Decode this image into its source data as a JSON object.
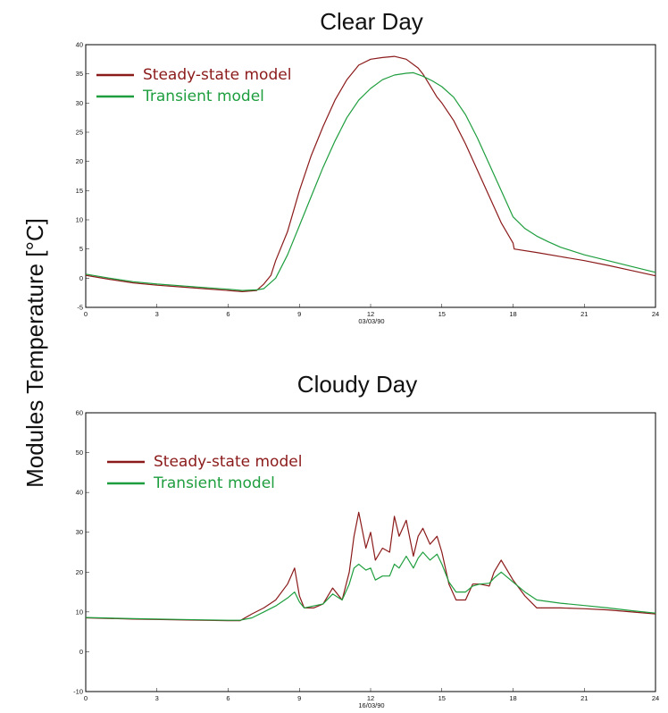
{
  "figure": {
    "ylabel": "Modules Temperature [°C]"
  },
  "colors": {
    "steady": "#8b1a1a",
    "transient": "#1e9e3e"
  },
  "chart_data": [
    {
      "type": "line",
      "title": "Clear Day",
      "xlabel": "03/03/90",
      "ylabel": "",
      "xlim": [
        0,
        24
      ],
      "ylim": [
        -5,
        40
      ],
      "xticks": [
        0,
        3,
        6,
        9,
        12,
        15,
        18,
        21,
        24
      ],
      "yticks": [
        -5,
        0,
        5,
        10,
        15,
        20,
        25,
        30,
        35,
        40
      ],
      "grid": false,
      "legend": "top-left",
      "series": [
        {
          "name": "Steady-state model",
          "color": "#8b1a1a",
          "x": [
            0,
            1,
            2,
            3,
            4,
            5,
            6,
            6.6,
            7.2,
            7.5,
            7.8,
            8,
            8.5,
            9,
            9.5,
            10,
            10.5,
            11,
            11.5,
            12,
            12.5,
            13,
            13.5,
            14,
            14.2,
            14.5,
            14.8,
            15,
            15.5,
            16,
            16.5,
            17,
            17.5,
            18,
            18.05,
            19,
            20,
            21,
            22,
            23,
            24
          ],
          "y": [
            0.5,
            -0.2,
            -0.8,
            -1.2,
            -1.5,
            -1.8,
            -2.1,
            -2.3,
            -2.1,
            -1,
            0.5,
            3,
            8,
            15,
            21,
            26,
            30.5,
            34,
            36.5,
            37.5,
            37.8,
            38,
            37.5,
            36,
            35,
            33,
            31,
            30,
            27,
            23,
            18.5,
            14,
            9.5,
            6,
            5,
            4.4,
            3.7,
            3,
            2.2,
            1.3,
            0.4
          ]
        },
        {
          "name": "Transient model",
          "color": "#1e9e3e",
          "x": [
            0,
            1,
            2,
            3,
            4,
            5,
            6,
            6.6,
            7.2,
            7.5,
            8,
            8.5,
            9,
            9.5,
            10,
            10.5,
            11,
            11.5,
            12,
            12.5,
            13,
            13.5,
            13.8,
            14.2,
            14.6,
            15,
            15.5,
            16,
            16.5,
            17,
            17.5,
            18,
            18.5,
            19,
            19.5,
            20,
            21,
            22,
            23,
            24
          ],
          "y": [
            0.7,
            0,
            -0.6,
            -1,
            -1.3,
            -1.6,
            -1.9,
            -2.1,
            -2,
            -1.8,
            0,
            4,
            9,
            14,
            19,
            23.5,
            27.5,
            30.5,
            32.5,
            34,
            34.8,
            35.1,
            35.2,
            34.6,
            33.8,
            32.8,
            31,
            28,
            24,
            19.5,
            15,
            10.5,
            8.5,
            7.2,
            6.2,
            5.3,
            4,
            3,
            2,
            1
          ]
        }
      ]
    },
    {
      "type": "line",
      "title": "Cloudy Day",
      "xlabel": "16/03/90",
      "ylabel": "",
      "xlim": [
        0,
        24
      ],
      "ylim": [
        -10,
        60
      ],
      "xticks": [
        0,
        3,
        6,
        9,
        12,
        15,
        18,
        21,
        24
      ],
      "yticks": [
        -10,
        0,
        10,
        20,
        30,
        40,
        50,
        60
      ],
      "grid": false,
      "legend": "top-left",
      "series": [
        {
          "name": "Steady-state model",
          "color": "#8b1a1a",
          "x": [
            0,
            2,
            4,
            6,
            6.5,
            7,
            7.5,
            8,
            8.5,
            8.8,
            9,
            9.2,
            9.6,
            10,
            10.4,
            10.8,
            11.1,
            11.3,
            11.5,
            11.8,
            12,
            12.2,
            12.5,
            12.8,
            13,
            13.2,
            13.5,
            13.8,
            14,
            14.2,
            14.5,
            14.8,
            15,
            15.3,
            15.6,
            16,
            16.3,
            16.6,
            17,
            17.2,
            17.5,
            18,
            18.5,
            19,
            20,
            21,
            22,
            23,
            24
          ],
          "y": [
            8.5,
            8.2,
            8,
            7.8,
            7.8,
            9.5,
            11,
            13,
            17,
            21,
            14,
            11,
            11,
            12,
            16,
            13,
            20,
            29,
            35,
            26,
            30,
            23,
            26,
            25,
            34,
            29,
            33,
            24,
            29,
            31,
            27,
            29,
            25,
            17,
            13,
            13,
            17,
            17,
            16.5,
            20,
            23,
            18,
            14,
            11,
            11,
            10.8,
            10.5,
            10,
            9.5
          ]
        },
        {
          "name": "Transient model",
          "color": "#1e9e3e",
          "x": [
            0,
            2,
            4,
            6,
            6.5,
            7,
            7.5,
            8,
            8.5,
            8.8,
            9,
            9.2,
            9.6,
            10,
            10.4,
            10.8,
            11.1,
            11.3,
            11.5,
            11.8,
            12,
            12.2,
            12.5,
            12.8,
            13,
            13.2,
            13.5,
            13.8,
            14,
            14.2,
            14.5,
            14.8,
            15,
            15.3,
            15.6,
            16,
            16.3,
            16.6,
            17,
            17.2,
            17.5,
            18,
            18.5,
            19,
            20,
            21,
            22,
            23,
            24
          ],
          "y": [
            8.6,
            8.3,
            8.1,
            7.9,
            7.9,
            8.5,
            10,
            11.5,
            13.5,
            15,
            12.5,
            11,
            11.5,
            12,
            14.5,
            13,
            17,
            21,
            22,
            20.5,
            21,
            18,
            19,
            19,
            22,
            21,
            24,
            21,
            23.5,
            25,
            23,
            24.5,
            22,
            17.5,
            15,
            15,
            16.5,
            17,
            17.2,
            18.5,
            20,
            17.5,
            15,
            13,
            12.2,
            11.6,
            11,
            10.3,
            9.7
          ]
        }
      ]
    }
  ]
}
